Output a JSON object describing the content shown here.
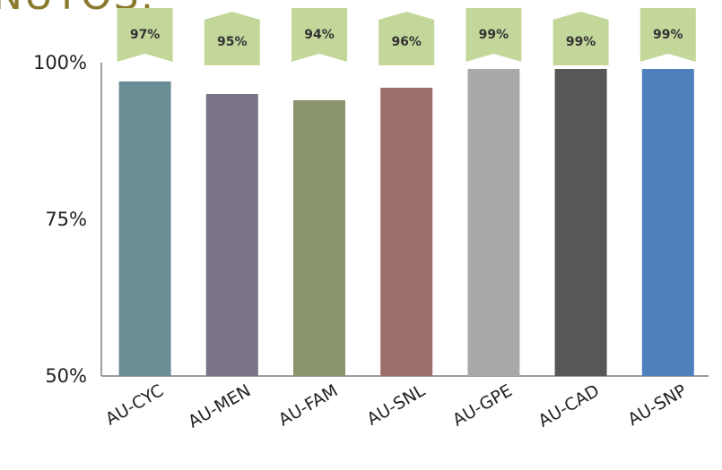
{
  "heading_fragment": "NUTOS:",
  "chart_data": {
    "type": "bar",
    "categories": [
      "AU-CYC",
      "AU-MEN",
      "AU-FAM",
      "AU-SNL",
      "AU-GPE",
      "AU-CAD",
      "AU-SNP"
    ],
    "values": [
      97,
      95,
      94,
      96,
      99,
      99,
      99
    ],
    "data_labels": [
      "97%",
      "95%",
      "94%",
      "96%",
      "99%",
      "99%",
      "99%"
    ],
    "ylim": [
      50,
      100
    ],
    "yticks": [
      "50%",
      "75%",
      "100%"
    ],
    "ytick_values": [
      50,
      75,
      100
    ],
    "bar_colors": [
      "#6b8e96",
      "#7b7189",
      "#89946d",
      "#9c6e6a",
      "#a9a9a9",
      "#575757",
      "#4e80bd"
    ],
    "label_callout_color": "#c4d79b",
    "grid": false
  }
}
